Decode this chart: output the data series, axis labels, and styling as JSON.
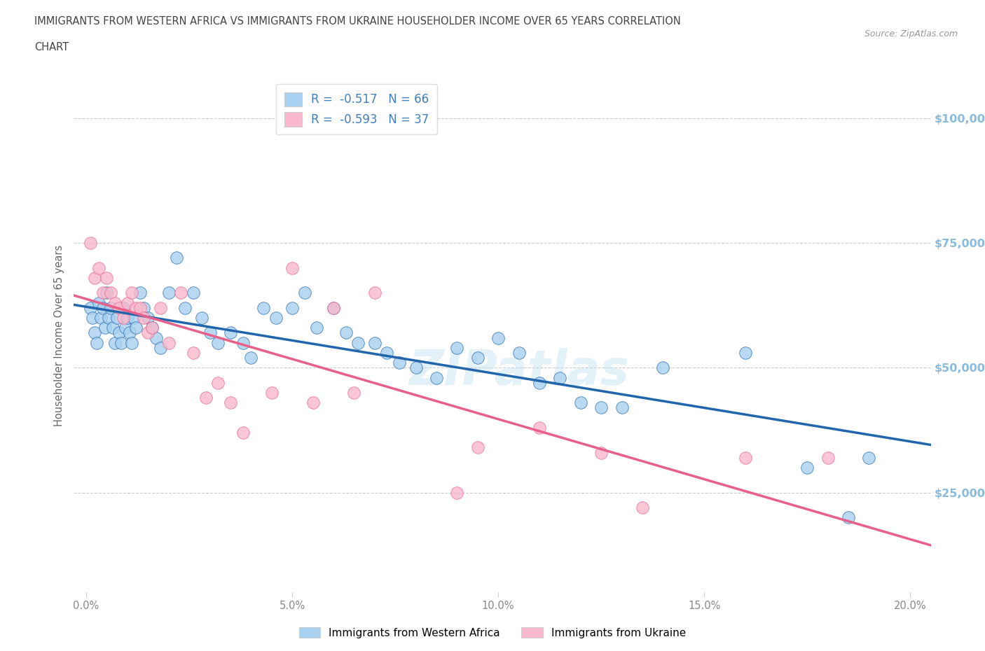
{
  "title_line1": "IMMIGRANTS FROM WESTERN AFRICA VS IMMIGRANTS FROM UKRAINE HOUSEHOLDER INCOME OVER 65 YEARS CORRELATION",
  "title_line2": "CHART",
  "source_text": "Source: ZipAtlas.com",
  "watermark": "ZIPatlas",
  "ylabel": "Householder Income Over 65 years",
  "x_tick_labels": [
    "0.0%",
    "5.0%",
    "10.0%",
    "15.0%",
    "20.0%"
  ],
  "x_tick_positions": [
    0.0,
    5.0,
    10.0,
    15.0,
    20.0
  ],
  "y_tick_labels": [
    "$25,000",
    "$50,000",
    "$75,000",
    "$100,000"
  ],
  "y_tick_positions": [
    25000,
    50000,
    75000,
    100000
  ],
  "y_min": 5000,
  "y_max": 108000,
  "x_min": -0.3,
  "x_max": 20.5,
  "color_blue": "#A8D0F0",
  "color_pink": "#F9B8CC",
  "line_blue": "#2166AC",
  "line_pink": "#E8608A",
  "text_color_blue": "#4080C0",
  "R_blue": -0.517,
  "N_blue": 66,
  "R_pink": -0.593,
  "N_pink": 37,
  "legend_label_blue": "Immigrants from Western Africa",
  "legend_label_pink": "Immigrants from Ukraine",
  "blue_x": [
    0.1,
    0.15,
    0.2,
    0.25,
    0.3,
    0.35,
    0.4,
    0.45,
    0.5,
    0.55,
    0.6,
    0.65,
    0.7,
    0.75,
    0.8,
    0.85,
    0.9,
    0.95,
    1.0,
    1.05,
    1.1,
    1.15,
    1.2,
    1.3,
    1.4,
    1.5,
    1.6,
    1.7,
    1.8,
    2.0,
    2.2,
    2.4,
    2.6,
    2.8,
    3.0,
    3.2,
    3.5,
    3.8,
    4.0,
    4.3,
    4.6,
    5.0,
    5.3,
    5.6,
    6.0,
    6.3,
    6.6,
    7.0,
    7.3,
    7.6,
    8.0,
    8.5,
    9.0,
    9.5,
    10.0,
    10.5,
    11.0,
    11.5,
    12.0,
    12.5,
    13.0,
    14.0,
    16.0,
    17.5,
    18.5,
    19.0
  ],
  "blue_y": [
    62000,
    60000,
    57000,
    55000,
    63000,
    60000,
    62000,
    58000,
    65000,
    60000,
    62000,
    58000,
    55000,
    60000,
    57000,
    55000,
    62000,
    58000,
    60000,
    57000,
    55000,
    60000,
    58000,
    65000,
    62000,
    60000,
    58000,
    56000,
    54000,
    65000,
    72000,
    62000,
    65000,
    60000,
    57000,
    55000,
    57000,
    55000,
    52000,
    62000,
    60000,
    62000,
    65000,
    58000,
    62000,
    57000,
    55000,
    55000,
    53000,
    51000,
    50000,
    48000,
    54000,
    52000,
    56000,
    53000,
    47000,
    48000,
    43000,
    42000,
    42000,
    50000,
    53000,
    30000,
    20000,
    32000
  ],
  "pink_x": [
    0.1,
    0.2,
    0.3,
    0.4,
    0.5,
    0.6,
    0.7,
    0.8,
    0.9,
    1.0,
    1.1,
    1.2,
    1.3,
    1.4,
    1.5,
    1.6,
    1.8,
    2.0,
    2.3,
    2.6,
    2.9,
    3.2,
    3.5,
    3.8,
    4.5,
    5.0,
    5.5,
    6.0,
    6.5,
    7.0,
    9.0,
    9.5,
    11.0,
    12.5,
    13.5,
    16.0,
    18.0
  ],
  "pink_y": [
    75000,
    68000,
    70000,
    65000,
    68000,
    65000,
    63000,
    62000,
    60000,
    63000,
    65000,
    62000,
    62000,
    60000,
    57000,
    58000,
    62000,
    55000,
    65000,
    53000,
    44000,
    47000,
    43000,
    37000,
    45000,
    70000,
    43000,
    62000,
    45000,
    65000,
    25000,
    34000,
    38000,
    33000,
    22000,
    32000,
    32000
  ]
}
